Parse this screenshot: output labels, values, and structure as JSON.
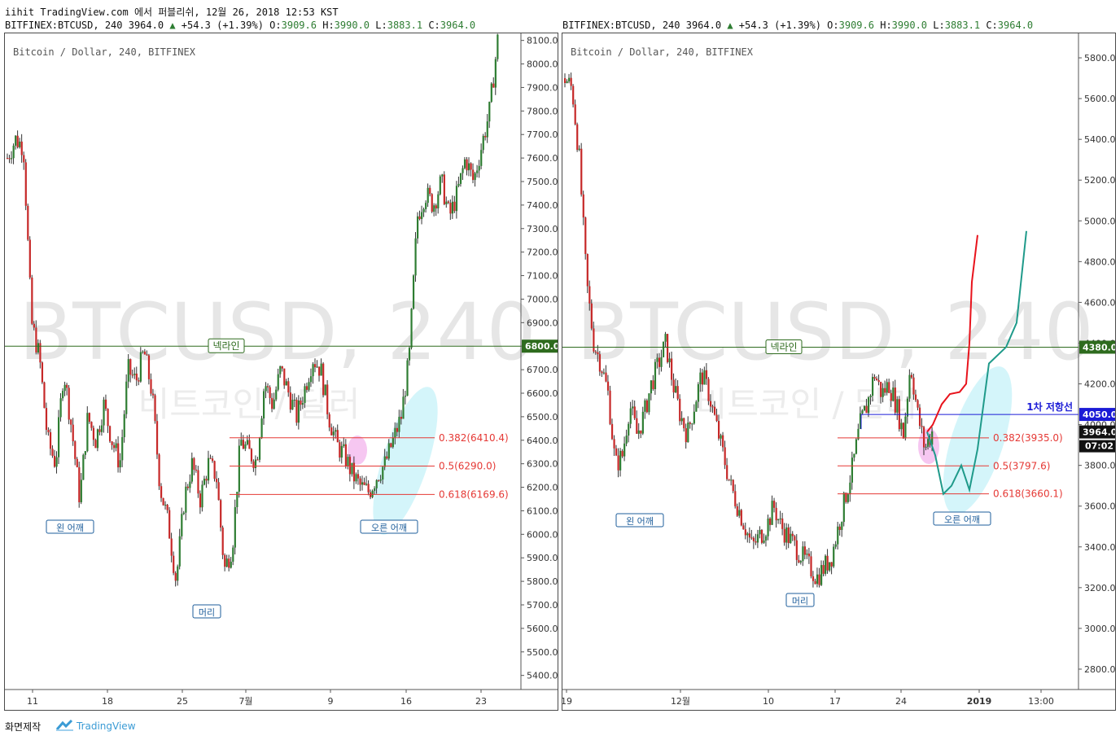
{
  "header": {
    "line1": "iihit TradingView.com 에서 퍼블리쉬, 12월 26, 2018 12:53 KST",
    "line2_left": "BITFINEX:BTCUSD, 240 3964.0",
    "up_arrow": "▲",
    "change": "+54.3 (+1.39%)",
    "o_label": "O:",
    "o_val": "3909.6",
    "h_label": "H:",
    "h_val": "3990.0",
    "l_label": "L:",
    "l_val": "3883.1",
    "c_label": "C:",
    "c_val": "3964.0",
    "line2_right": "BITFINEX:BTCUSD, 240 3964.0"
  },
  "footer": {
    "snapshot": "화면제작",
    "brand": "TradingView"
  },
  "colors": {
    "up": "#2e7d32",
    "down": "#c62828",
    "neckline": "#2e6b1e",
    "fib": "#e53935",
    "resistance": "#1b1bd6",
    "cyan": "#c9f3f9",
    "pink": "#f4b9ee",
    "teal_path": "#1f9a8a",
    "red_path": "#e8131c"
  },
  "chart_data": [
    {
      "type": "candlestick",
      "title": "Bitcoin / Dollar, 240, BITFINEX",
      "watermark_1": "BTCUSD, 240",
      "watermark_2": "비트코인 / 달러",
      "ylim": [
        5340,
        8130
      ],
      "y_ticks": [
        "8100.0",
        "8000.0",
        "7900.0",
        "7800.0",
        "7700.0",
        "7600.0",
        "7500.0",
        "7400.0",
        "7300.0",
        "7200.0",
        "7100.0",
        "7000.0",
        "6900.0",
        "6800.0",
        "6700.0",
        "6600.0",
        "6500.0",
        "6400.0",
        "6300.0",
        "6200.0",
        "6100.0",
        "6000.0",
        "5900.0",
        "5800.0",
        "5700.0",
        "5600.0",
        "5500.0",
        "5400.0"
      ],
      "x_ticks": [
        "11",
        "18",
        "25",
        "7월",
        "9",
        "16",
        "23"
      ],
      "price_path": [
        7600,
        7680,
        7650,
        6900,
        6750,
        6400,
        6300,
        6700,
        6450,
        6150,
        6500,
        6400,
        6550,
        6400,
        6300,
        6700,
        6650,
        6780,
        6600,
        6200,
        6050,
        5800,
        6150,
        6300,
        6150,
        6300,
        6250,
        5850,
        5950,
        6400,
        6350,
        6310,
        6650,
        6550,
        6700,
        6600,
        6500,
        6620,
        6750,
        6700,
        6500,
        6380,
        6330,
        6250,
        6200,
        6180,
        6250,
        6300,
        6400,
        6500,
        6750,
        7350,
        7450,
        7400,
        7500,
        7350,
        7450,
        7600,
        7500,
        7650,
        7800,
        8100
      ],
      "neckline": {
        "value": 6800.0,
        "label": "넥라인",
        "badge": "6800.0"
      },
      "fib_levels": [
        {
          "value": 6410.4,
          "label": "0.382(6410.4)"
        },
        {
          "value": 6290.0,
          "label": "0.5(6290.0)"
        },
        {
          "value": 6169.6,
          "label": "0.618(6169.6)"
        }
      ],
      "annotations": [
        "왼 어깨",
        "머리",
        "오른 어깨"
      ]
    },
    {
      "type": "candlestick",
      "title": "Bitcoin / Dollar, 240, BITFINEX",
      "watermark_1": "BTCUSD, 240",
      "watermark_2": "비트코인 / 달러",
      "ylim": [
        2700,
        5920
      ],
      "y_ticks": [
        "5800.0",
        "5600.0",
        "5400.0",
        "5200.0",
        "5000.0",
        "4800.0",
        "4600.0",
        "4400.0",
        "4200.0",
        "4000.0",
        "3800.0",
        "3600.0",
        "3400.0",
        "3200.0",
        "3000.0",
        "2800.0"
      ],
      "x_ticks": [
        "19",
        "12월",
        "10",
        "17",
        "24",
        "2019",
        "13:00"
      ],
      "price_path": [
        5700,
        5650,
        5300,
        4700,
        4400,
        4300,
        4150,
        3800,
        3850,
        4100,
        3950,
        4050,
        4200,
        4300,
        4400,
        4200,
        4050,
        3950,
        4100,
        4250,
        4150,
        4000,
        3850,
        3700,
        3600,
        3500,
        3400,
        3450,
        3500,
        3600,
        3500,
        3450,
        3400,
        3350,
        3300,
        3250,
        3300,
        3350,
        3500,
        3650,
        3800,
        4000,
        4100,
        4250,
        4150,
        4200,
        4100,
        3950,
        4300,
        4050,
        3880,
        3964
      ],
      "current_price": {
        "value": 3964.0,
        "badge": "3964.0",
        "countdown": "07:02"
      },
      "neckline": {
        "value": 4380.0,
        "label": "넥라인",
        "badge": "4380.0"
      },
      "resistance": {
        "value": 4050.0,
        "label": "1차 저항선",
        "badge": "4050.0"
      },
      "fib_levels": [
        {
          "value": 3935.0,
          "label": "0.382(3935.0)"
        },
        {
          "value": 3797.6,
          "label": "0.5(3797.6)"
        },
        {
          "value": 3660.1,
          "label": "0.618(3660.1)"
        }
      ],
      "projection_red": [
        3964,
        4000,
        4100,
        4150,
        4160,
        4200,
        4400,
        4700,
        4930
      ],
      "projection_teal": [
        3964,
        3850,
        3660,
        3700,
        3800,
        3680,
        3880,
        4300,
        4380,
        4500,
        4950
      ],
      "annotations": [
        "왼 어깨",
        "머리",
        "오른 어깨"
      ]
    }
  ]
}
